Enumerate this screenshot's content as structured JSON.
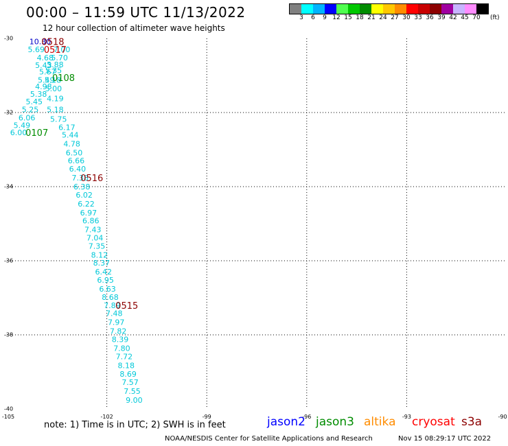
{
  "header": {
    "title": "00:00 – 11:59 UTC 11/13/2022",
    "subtitle": "12 hour collection of altimeter wave heights"
  },
  "legend": {
    "colors": [
      "#808080",
      "#00ffff",
      "#00b4ff",
      "#0000ff",
      "#50ff50",
      "#00c800",
      "#008c00",
      "#ffff00",
      "#ffc800",
      "#ff8c00",
      "#ff0000",
      "#c80000",
      "#8c0000",
      "#a000a0",
      "#c8b4ff",
      "#ff8cff",
      "#000000"
    ],
    "labels": [
      "3",
      "6",
      "9",
      "12",
      "15",
      "18",
      "21",
      "24",
      "27",
      "30",
      "33",
      "36",
      "39",
      "42",
      "45",
      "70"
    ],
    "unit": "(ft)"
  },
  "map": {
    "lat_labels": [
      "-30",
      "-32",
      "-34",
      "-36",
      "-38",
      "-40"
    ],
    "lon_labels": [
      "-105",
      "-102",
      "-99",
      "-96",
      "-93",
      "-90"
    ],
    "lat_values": [
      -30,
      -32,
      -34,
      -36,
      -38,
      -40
    ],
    "lon_values": [
      -105,
      -102,
      -99,
      -96,
      -93,
      -90
    ],
    "extent": {
      "lon": [
        -105,
        -90
      ],
      "lat": [
        -30,
        -40
      ]
    },
    "wave_color": "#00c8d8",
    "observations": [
      {
        "lon": -104.0,
        "lat": -30.08,
        "value": "10.30",
        "color": "#0000c8"
      },
      {
        "lon": -104.12,
        "lat": -30.3,
        "value": "5.69"
      },
      {
        "lon": -103.35,
        "lat": -30.3,
        "value": "7.00"
      },
      {
        "lon": -103.42,
        "lat": -30.52,
        "value": "5.70"
      },
      {
        "lon": -103.85,
        "lat": -30.52,
        "value": "4.68"
      },
      {
        "lon": -103.55,
        "lat": -30.7,
        "value": "5.88"
      },
      {
        "lon": -103.9,
        "lat": -30.72,
        "value": "5.43"
      },
      {
        "lon": -103.6,
        "lat": -30.86,
        "value": "5.35"
      },
      {
        "lon": -103.78,
        "lat": -30.9,
        "value": "5.67"
      },
      {
        "lon": -103.82,
        "lat": -31.12,
        "value": "5.49"
      },
      {
        "lon": -103.62,
        "lat": -31.12,
        "value": "5.18"
      },
      {
        "lon": -103.9,
        "lat": -31.3,
        "value": "4.98"
      },
      {
        "lon": -103.6,
        "lat": -31.35,
        "value": "5.00"
      },
      {
        "lon": -104.05,
        "lat": -31.5,
        "value": "5.38"
      },
      {
        "lon": -103.55,
        "lat": -31.62,
        "value": "4.19"
      },
      {
        "lon": -104.18,
        "lat": -31.7,
        "value": "5.45"
      },
      {
        "lon": -104.3,
        "lat": -31.92,
        "value": "5.25"
      },
      {
        "lon": -103.55,
        "lat": -31.92,
        "value": "5.18"
      },
      {
        "lon": -104.4,
        "lat": -32.14,
        "value": "6.06"
      },
      {
        "lon": -103.45,
        "lat": -32.18,
        "value": "5.75"
      },
      {
        "lon": -104.55,
        "lat": -32.34,
        "value": "5.49"
      },
      {
        "lon": -103.2,
        "lat": -32.4,
        "value": "6.17"
      },
      {
        "lon": -104.65,
        "lat": -32.54,
        "value": "6.00"
      },
      {
        "lon": -103.1,
        "lat": -32.6,
        "value": "5.44"
      },
      {
        "lon": -103.05,
        "lat": -32.84,
        "value": "4.78"
      },
      {
        "lon": -102.98,
        "lat": -33.08,
        "value": "6.50"
      },
      {
        "lon": -102.92,
        "lat": -33.3,
        "value": "6.66"
      },
      {
        "lon": -102.88,
        "lat": -33.52,
        "value": "6.40"
      },
      {
        "lon": -102.8,
        "lat": -33.76,
        "value": "7.38"
      },
      {
        "lon": -102.75,
        "lat": -34.0,
        "value": "6.38"
      },
      {
        "lon": -102.68,
        "lat": -34.22,
        "value": "6.02"
      },
      {
        "lon": -102.62,
        "lat": -34.46,
        "value": "6.22"
      },
      {
        "lon": -102.55,
        "lat": -34.7,
        "value": "6.97"
      },
      {
        "lon": -102.48,
        "lat": -34.92,
        "value": "6.86"
      },
      {
        "lon": -102.42,
        "lat": -35.16,
        "value": "7.43"
      },
      {
        "lon": -102.36,
        "lat": -35.38,
        "value": "7.04"
      },
      {
        "lon": -102.3,
        "lat": -35.6,
        "value": "7.35"
      },
      {
        "lon": -102.22,
        "lat": -35.84,
        "value": "8.12"
      },
      {
        "lon": -102.16,
        "lat": -36.06,
        "value": "8.37"
      },
      {
        "lon": -102.1,
        "lat": -36.3,
        "value": "6.42"
      },
      {
        "lon": -102.04,
        "lat": -36.52,
        "value": "6.95"
      },
      {
        "lon": -101.98,
        "lat": -36.76,
        "value": "6.63"
      },
      {
        "lon": -101.9,
        "lat": -36.98,
        "value": "8.68"
      },
      {
        "lon": -101.84,
        "lat": -37.2,
        "value": "7.89"
      },
      {
        "lon": -101.78,
        "lat": -37.42,
        "value": "7.48"
      },
      {
        "lon": -101.72,
        "lat": -37.66,
        "value": "7.97"
      },
      {
        "lon": -101.66,
        "lat": -37.9,
        "value": "7.82"
      },
      {
        "lon": -101.6,
        "lat": -38.12,
        "value": "8.39"
      },
      {
        "lon": -101.55,
        "lat": -38.36,
        "value": "7.80"
      },
      {
        "lon": -101.48,
        "lat": -38.58,
        "value": "7.72"
      },
      {
        "lon": -101.42,
        "lat": -38.82,
        "value": "8.18"
      },
      {
        "lon": -101.36,
        "lat": -39.06,
        "value": "8.69"
      },
      {
        "lon": -101.3,
        "lat": -39.28,
        "value": "7.57"
      },
      {
        "lon": -101.24,
        "lat": -39.52,
        "value": "7.55"
      },
      {
        "lon": -101.18,
        "lat": -39.76,
        "value": "9.00"
      }
    ],
    "passes": [
      {
        "lon": -103.62,
        "lat": -30.08,
        "label": "0518",
        "color": "#8c0000"
      },
      {
        "lon": -103.55,
        "lat": -30.3,
        "label": "0517",
        "color": "#c80000"
      },
      {
        "lon": -103.3,
        "lat": -31.06,
        "label": "0108",
        "color": "#008c00"
      },
      {
        "lon": -104.1,
        "lat": -32.54,
        "label": "0107",
        "color": "#008c00"
      },
      {
        "lon": -102.45,
        "lat": -33.76,
        "label": "0516",
        "color": "#8c0000"
      },
      {
        "lon": -101.4,
        "lat": -37.2,
        "label": "0515",
        "color": "#8c0000"
      }
    ]
  },
  "footer": {
    "note": "note: 1) Time is in UTC; 2) SWH is in feet",
    "satellites": [
      {
        "name": "jason2",
        "color": "#0000ff"
      },
      {
        "name": "jason3",
        "color": "#008c00"
      },
      {
        "name": "altika",
        "color": "#ff8c00"
      },
      {
        "name": "cryosat",
        "color": "#ff0000"
      },
      {
        "name": "s3a",
        "color": "#8c0000"
      }
    ],
    "credit": "NOAA/NESDIS Center for Satellite Applications and Research",
    "timestamp": "Nov 15 08:29:17 UTC 2022"
  }
}
